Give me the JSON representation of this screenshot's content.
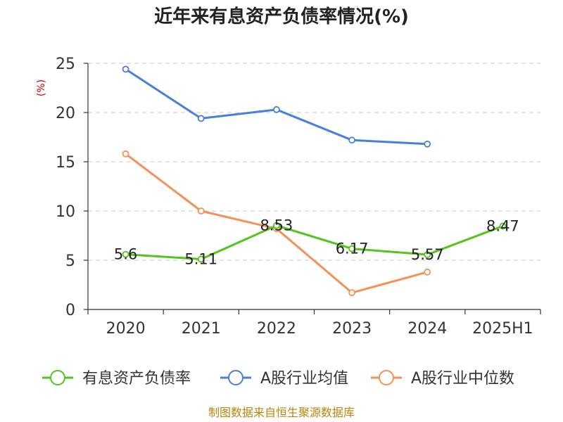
{
  "chart_data": {
    "type": "line",
    "title": "近年来有息资产负债率情况(%)",
    "ylabel": "(%)",
    "xlabel": "",
    "categories": [
      "2020",
      "2021",
      "2022",
      "2023",
      "2024",
      "2025H1"
    ],
    "yticks": [
      "0",
      "5",
      "10",
      "15",
      "20",
      "25"
    ],
    "ylim": [
      0,
      25
    ],
    "grid": true,
    "legend_position": "bottom",
    "series": [
      {
        "name": "有息资产负债率",
        "color": "#52c41a",
        "values": [
          5.6,
          5.11,
          8.53,
          6.17,
          5.57,
          8.47
        ],
        "labels": [
          "5.6",
          "5.11",
          "8.53",
          "6.17",
          "5.57",
          "8.47"
        ]
      },
      {
        "name": "A股行业均值",
        "color": "#4a7fdc",
        "values": [
          24.4,
          19.4,
          20.3,
          17.2,
          16.8,
          null
        ]
      },
      {
        "name": "A股行业中位数",
        "color": "#f4915a",
        "values": [
          15.8,
          10.0,
          8.2,
          1.7,
          3.8,
          null
        ]
      }
    ]
  },
  "source_text": "制图数据来自恒生聚源数据库"
}
